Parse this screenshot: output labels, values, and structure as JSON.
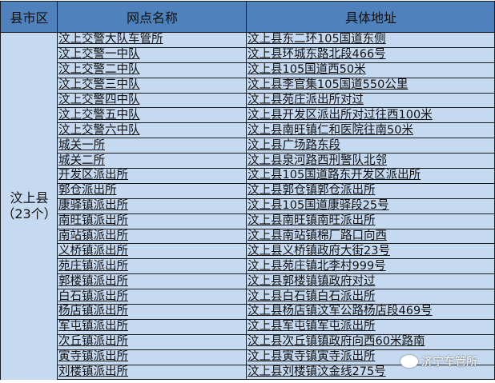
{
  "headers": {
    "county": "县市区",
    "name": "网点名称",
    "address": "具体地址"
  },
  "county": {
    "name": "汶上县",
    "count": "（23个）"
  },
  "rows": [
    {
      "name": "汶上交警大队车管所",
      "address": "汶上县东二环105国道东侧"
    },
    {
      "name": "汶上交警一中队",
      "address": "汶上县环城东路北段466号"
    },
    {
      "name": "汶上交警二中队",
      "address": "汶上县105国道西50米"
    },
    {
      "name": "汶上交警三中队",
      "address": "汶上县李官集105国道550公里"
    },
    {
      "name": "汶上交警四中队",
      "address": "汶上县苑庄派出所对过"
    },
    {
      "name": "汶上交警五中队",
      "address": "汶上县开发区派出所对过往西100米"
    },
    {
      "name": "汶上交警六中队",
      "address": "汶上县南旺镇仁和医院往南50米"
    },
    {
      "name": "城关一所",
      "address": "汶上县广场路东段"
    },
    {
      "name": "城关二所",
      "address": "汶上县泉河路西刑警队北邻"
    },
    {
      "name": "开发区派出所",
      "address": "汶上县105国道路东开发区派出所"
    },
    {
      "name": "郭仓派出所",
      "address": "汶上县郭仓镇郭仓派出所"
    },
    {
      "name": "康驿镇派出所",
      "address": "汶上县105国道康驿段25号"
    },
    {
      "name": "南旺镇派出所",
      "address": "汶上县南旺镇南旺派出所"
    },
    {
      "name": "南站镇派出所",
      "address": "汶上县南站镇棉厂路口向西"
    },
    {
      "name": "义桥镇派出所",
      "address": "汶上县义桥镇政府大街23号"
    },
    {
      "name": "苑庄镇派出所",
      "address": "汶上县苑庄镇北李村999号"
    },
    {
      "name": "郭楼镇派出所",
      "address": "汶上县郭楼镇镇政府对过"
    },
    {
      "name": "白石镇派出所",
      "address": "汶上县白石镇白石派出所"
    },
    {
      "name": "杨店镇派出所",
      "address": "汶上县杨店镇汶军公路杨店段469号"
    },
    {
      "name": "军屯镇派出所",
      "address": "汶上县军屯镇军屯派出所"
    },
    {
      "name": "次丘镇派出所",
      "address": "汶上县次丘镇镇政府向西60米路南"
    },
    {
      "name": "寅寺镇派出所",
      "address": "汶上县寅寺镇寅寺派出所"
    },
    {
      "name": "刘楼镇派出所",
      "address": "汶上县刘楼镇汶金线275号"
    }
  ],
  "watermark": {
    "text": "济宁车管所",
    "icon": "wechat-icon"
  },
  "colors": {
    "header": "#4f81bd",
    "body": "#c5d9f1"
  }
}
